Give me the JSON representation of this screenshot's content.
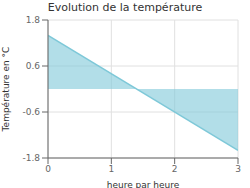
{
  "chart_data": {
    "type": "area",
    "title": "Evolution de la température",
    "x_label": "heure par heure",
    "y_label": "Température en °C",
    "x": [
      0,
      3
    ],
    "values": [
      1.4,
      -1.6
    ],
    "color": "#7ec8d8",
    "xlim": [
      0,
      3
    ],
    "ylim": [
      -1.8,
      1.8
    ],
    "xticks": [
      0,
      1,
      2,
      3
    ],
    "yticks": [
      -1.8,
      -0.6,
      0.6,
      1.8
    ],
    "grid": true
  }
}
